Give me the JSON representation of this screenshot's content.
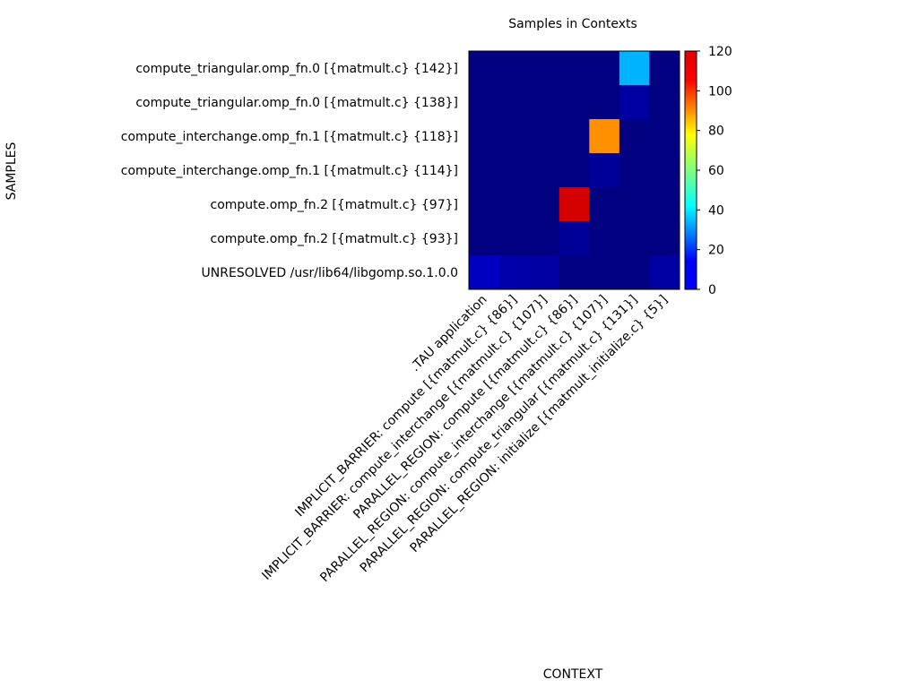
{
  "chart_data": {
    "type": "heatmap",
    "title": "Samples in Contexts",
    "xlabel": "CONTEXT",
    "ylabel": "SAMPLES",
    "x_categories": [
      ".TAU application",
      "IMPLICIT_BARRIER: compute [{matmult.c} {86}]",
      "IMPLICIT_BARRIER: compute_interchange [{matmult.c} {107}]",
      "PARALLEL_REGION: compute [{matmult.c} {86}]",
      "PARALLEL_REGION: compute_interchange [{matmult.c} {107}]",
      "PARALLEL_REGION: compute_triangular [{matmult.c} {131}]",
      "PARALLEL_REGION: initialize [{matmult_initialize.c} {5}]"
    ],
    "y_categories": [
      "compute_triangular.omp_fn.0 [{matmult.c} {142}]",
      "compute_triangular.omp_fn.0 [{matmult.c} {138}]",
      "compute_interchange.omp_fn.1 [{matmult.c} {118}]",
      "compute_interchange.omp_fn.1 [{matmult.c} {114}]",
      "compute.omp_fn.2 [{matmult.c} {97}]",
      "compute.omp_fn.2 [{matmult.c} {93}]",
      "UNRESOLVED /usr/lib64/libgomp.so.1.0.0"
    ],
    "values": [
      [
        0,
        0,
        0,
        0,
        0,
        36,
        0
      ],
      [
        0,
        0,
        0,
        0,
        0,
        4,
        0
      ],
      [
        0,
        0,
        0,
        0,
        88,
        0,
        0
      ],
      [
        0,
        0,
        0,
        0,
        3,
        0,
        0
      ],
      [
        0,
        0,
        0,
        110,
        0,
        0,
        0
      ],
      [
        0,
        0,
        0,
        3,
        0,
        0,
        0
      ],
      [
        8,
        5,
        4,
        0,
        0,
        0,
        4
      ]
    ],
    "colorbar": {
      "range": [
        0,
        120
      ],
      "ticks": [
        "0",
        "20",
        "40",
        "60",
        "80",
        "100",
        "120"
      ],
      "colormap": "jet"
    },
    "grid": false,
    "legend": "colorbar-right"
  }
}
